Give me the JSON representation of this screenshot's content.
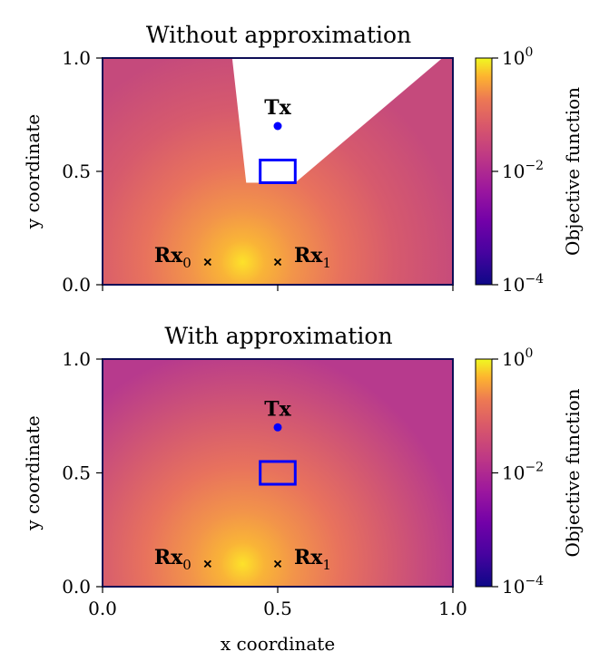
{
  "chart_data": [
    {
      "type": "heatmap",
      "title": "Without approximation",
      "xlabel": "",
      "ylabel": "y coordinate",
      "xlim": [
        0.0,
        1.0
      ],
      "ylim": [
        0.0,
        1.0
      ],
      "x_ticks": [
        "0.0",
        "0.5",
        "1.0"
      ],
      "x_tick_values": [
        0.0,
        0.5,
        1.0
      ],
      "y_ticks": [
        "0.0",
        "0.5",
        "1.0"
      ],
      "y_tick_values": [
        0.0,
        0.5,
        1.0
      ],
      "show_x_tick_labels": false,
      "colorscale": "plasma",
      "colorbar": {
        "label": "Objective function",
        "scale": "log",
        "range": [
          0.0001,
          1
        ],
        "ticks": [
          {
            "base": "10",
            "exp": "0"
          },
          {
            "base": "10",
            "exp": "−2"
          },
          {
            "base": "10",
            "exp": "−4"
          }
        ]
      },
      "objective_peak": {
        "x": 0.4,
        "y": 0.1
      },
      "shadow_region": {
        "label": "",
        "polygon": [
          [
            0.37,
            1.0
          ],
          [
            0.41,
            0.45
          ],
          [
            0.55,
            0.45
          ],
          [
            0.97,
            1.0
          ]
        ]
      },
      "transmitter": {
        "label": "Tx",
        "x": 0.5,
        "y": 0.7,
        "color": "#0000ff"
      },
      "receivers": [
        {
          "label": "Rx",
          "subscript": "0",
          "x": 0.3,
          "y": 0.1
        },
        {
          "label": "Rx",
          "subscript": "1",
          "x": 0.5,
          "y": 0.1
        }
      ],
      "obstacle": {
        "x": [
          0.45,
          0.55
        ],
        "y": [
          0.45,
          0.55
        ],
        "color": "#0000ff"
      }
    },
    {
      "type": "heatmap",
      "title": "With approximation",
      "xlabel": "x coordinate",
      "ylabel": "y coordinate",
      "xlim": [
        0.0,
        1.0
      ],
      "ylim": [
        0.0,
        1.0
      ],
      "x_ticks": [
        "0.0",
        "0.5",
        "1.0"
      ],
      "x_tick_values": [
        0.0,
        0.5,
        1.0
      ],
      "y_ticks": [
        "0.0",
        "0.5",
        "1.0"
      ],
      "y_tick_values": [
        0.0,
        0.5,
        1.0
      ],
      "show_x_tick_labels": true,
      "colorscale": "plasma",
      "colorbar": {
        "label": "Objective function",
        "scale": "log",
        "range": [
          0.0001,
          1
        ],
        "ticks": [
          {
            "base": "10",
            "exp": "0"
          },
          {
            "base": "10",
            "exp": "−2"
          },
          {
            "base": "10",
            "exp": "−4"
          }
        ]
      },
      "objective_peak": {
        "x": 0.4,
        "y": 0.1
      },
      "shadow_region": null,
      "transmitter": {
        "label": "Tx",
        "x": 0.5,
        "y": 0.7,
        "color": "#0000ff"
      },
      "receivers": [
        {
          "label": "Rx",
          "subscript": "0",
          "x": 0.3,
          "y": 0.1
        },
        {
          "label": "Rx",
          "subscript": "1",
          "x": 0.5,
          "y": 0.1
        }
      ],
      "obstacle": {
        "x": [
          0.45,
          0.55
        ],
        "y": [
          0.45,
          0.55
        ],
        "color": "#0000ff"
      }
    }
  ]
}
